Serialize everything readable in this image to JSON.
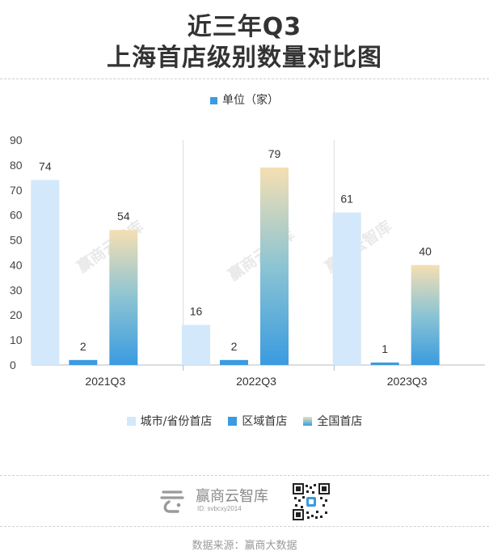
{
  "title_line1": "近三年Q3",
  "title_line2": "上海首店级别数量对比图",
  "unit_label": "单位（家）",
  "watermark_text": "赢商云智库",
  "brand": {
    "name": "赢商云智库",
    "id_text": "ID: svbcxy2014",
    "logo_icon": "brand-logo-icon",
    "qr_icon": "qr-code-icon"
  },
  "source_text": "数据来源：赢商大数据",
  "colors": {
    "city_province": "#d3e8fb",
    "regional": "#3a9be0",
    "national_top": "#f5dfb3",
    "national_mid": "#8cc4d3",
    "national_bottom": "#3a9be0"
  },
  "chart_data": {
    "type": "bar",
    "categories": [
      "2021Q3",
      "2022Q3",
      "2023Q3"
    ],
    "series": [
      {
        "name": "城市/省份首店",
        "values": [
          74,
          16,
          61
        ]
      },
      {
        "name": "区域首店",
        "values": [
          2,
          2,
          1
        ]
      },
      {
        "name": "全国首店",
        "values": [
          54,
          79,
          40
        ]
      }
    ],
    "ylim": [
      0,
      90
    ],
    "yticks": [
      0,
      10,
      20,
      30,
      40,
      50,
      60,
      70,
      80,
      90
    ],
    "legend_position": "bottom",
    "grid": false
  }
}
